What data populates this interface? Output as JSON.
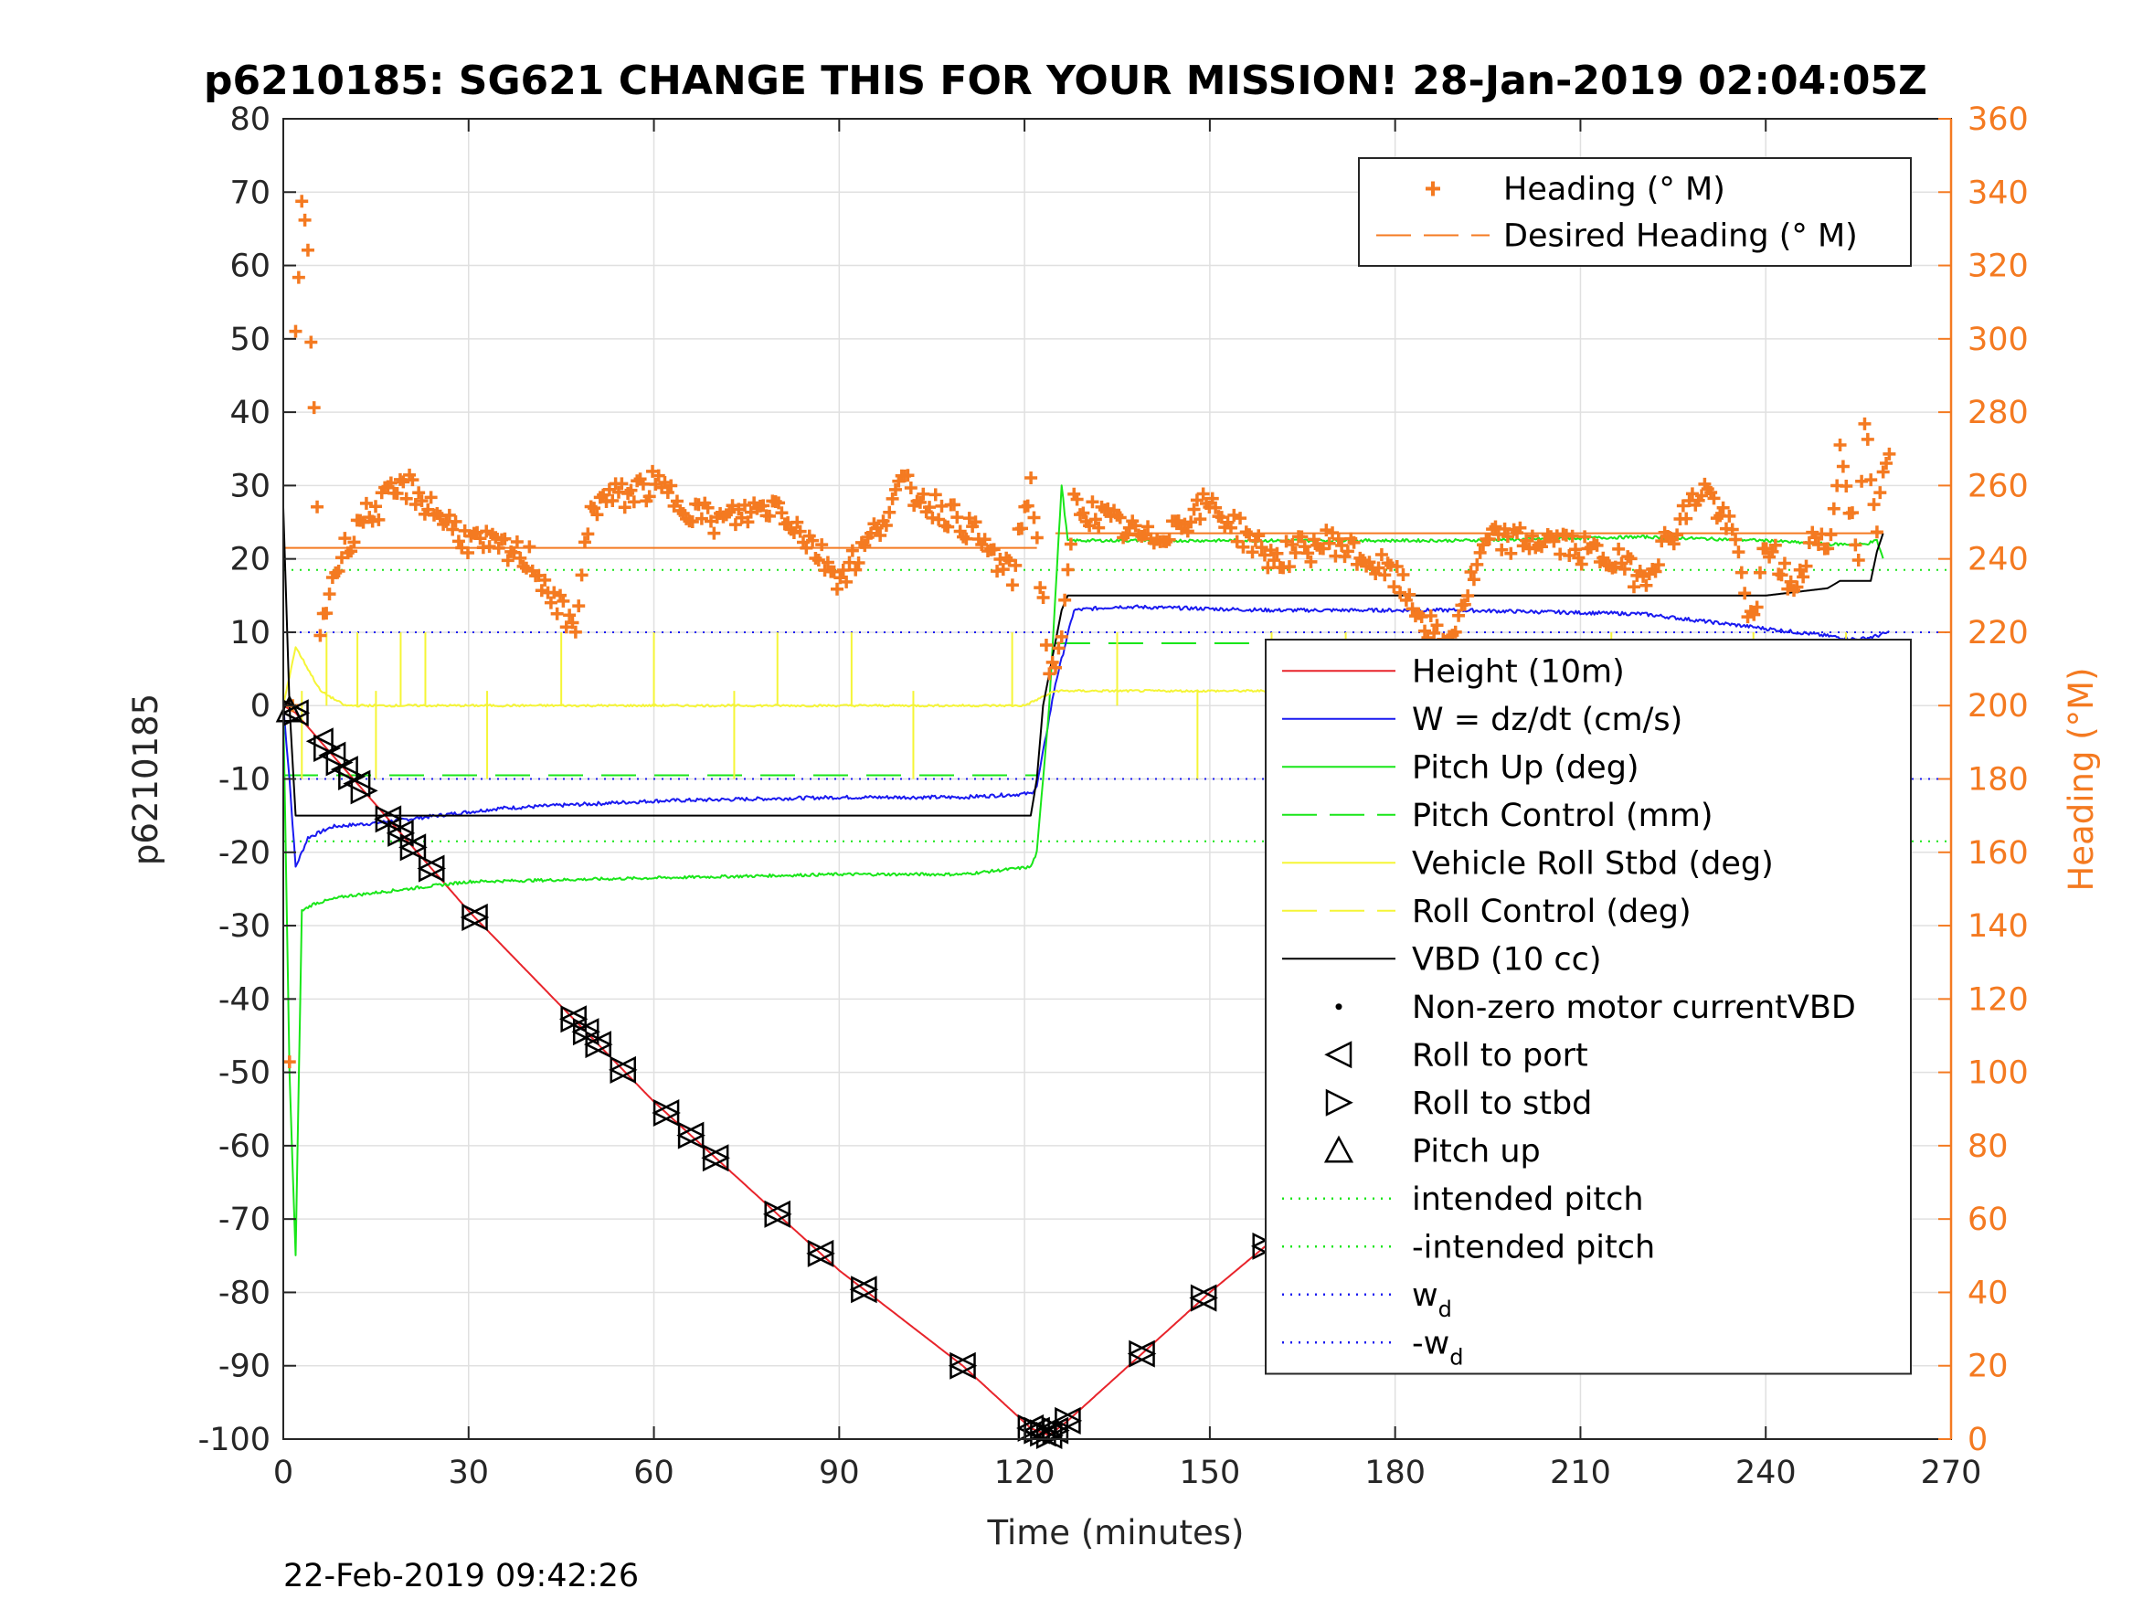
{
  "chart_data": {
    "type": "line",
    "title": "p6210185: SG621 CHANGE THIS FOR YOUR MISSION! 28-Jan-2019 02:04:05Z",
    "xlabel": "Time (minutes)",
    "ylabel": "p6210185",
    "y2label": "Heading (°M)",
    "timestamp": "22-Feb-2019 09:42:26",
    "xlim": [
      0,
      270
    ],
    "ylim": [
      -100,
      80
    ],
    "y2lim": [
      0,
      360
    ],
    "xticks": [
      "0",
      "30",
      "60",
      "90",
      "120",
      "150",
      "180",
      "210",
      "240",
      "270"
    ],
    "yticks": [
      "80",
      "70",
      "60",
      "50",
      "40",
      "30",
      "20",
      "10",
      "0",
      "-10",
      "-20",
      "-30",
      "-40",
      "-50",
      "-60",
      "-70",
      "-80",
      "-90",
      "-100"
    ],
    "y2ticks": [
      "360",
      "340",
      "320",
      "300",
      "280",
      "260",
      "240",
      "220",
      "200",
      "180",
      "160",
      "140",
      "120",
      "100",
      "80",
      "60",
      "40",
      "20",
      "0"
    ],
    "grid": true,
    "colors": {
      "heading": "#f47a21",
      "height": "#e8242b",
      "w": "#1a1af0",
      "pitch": "#19e619",
      "roll": "#f5f536",
      "vbd": "#000000"
    },
    "legend_heading": {
      "placement": "top-right",
      "entries": [
        {
          "label": "Heading (° M)",
          "marker": "plus",
          "color": "#f47a21"
        },
        {
          "label": "Desired Heading (° M)",
          "marker": "dash",
          "color": "#f47a21"
        }
      ]
    },
    "legend_main": {
      "placement": "right",
      "entries": [
        {
          "label": "Height (10m)",
          "marker": "line",
          "color": "#e8242b"
        },
        {
          "label": "W = dz/dt (cm/s)",
          "marker": "line",
          "color": "#1a1af0"
        },
        {
          "label": "Pitch Up (deg)",
          "marker": "line",
          "color": "#19e619"
        },
        {
          "label": "Pitch Control (mm)",
          "marker": "dash",
          "color": "#19e619"
        },
        {
          "label": "Vehicle Roll Stbd (deg)",
          "marker": "line",
          "color": "#f5f536"
        },
        {
          "label": "Roll Control (deg)",
          "marker": "dash",
          "color": "#f5f536"
        },
        {
          "label": "VBD (10 cc)",
          "marker": "line",
          "color": "#000000"
        },
        {
          "label": "Non-zero motor currentVBD",
          "marker": "dot",
          "color": "#000000"
        },
        {
          "label": "Roll to port",
          "marker": "tri-left",
          "color": "#000000"
        },
        {
          "label": "Roll to stbd",
          "marker": "tri-right",
          "color": "#000000"
        },
        {
          "label": "Pitch up",
          "marker": "tri-up",
          "color": "#000000"
        },
        {
          "label": "intended pitch",
          "marker": "dotted",
          "color": "#19e619"
        },
        {
          "label": "-intended pitch",
          "marker": "dotted",
          "color": "#19e619"
        },
        {
          "label": "w",
          "sub": "d",
          "marker": "dotted",
          "color": "#1a1af0"
        },
        {
          "label": "-w",
          "sub": "d",
          "marker": "dotted",
          "color": "#1a1af0"
        }
      ]
    },
    "reference_lines": {
      "intended_pitch": 18.5,
      "neg_intended_pitch": -18.5,
      "wd": 10,
      "neg_wd": -10,
      "desired_heading_dive": 243,
      "desired_heading_climb": 247,
      "pitch_control_dive": -9.5,
      "pitch_control_climb": 8.5
    },
    "series": [
      {
        "name": "Height (10m)",
        "x": [
          0,
          2,
          30,
          60,
          90,
          110,
          121,
          124,
          127,
          150,
          180,
          210,
          240,
          258,
          260
        ],
        "y": [
          0,
          -1,
          -28,
          -54,
          -77,
          -90,
          -98.5,
          -99.5,
          -97.5,
          -80,
          -59,
          -33,
          -12,
          -0.5,
          0
        ]
      },
      {
        "name": "W = dz/dt (cm/s)",
        "x": [
          0,
          1,
          2,
          4,
          8,
          15,
          25,
          35,
          60,
          90,
          110,
          121,
          122,
          125,
          128,
          135,
          160,
          190,
          220,
          235,
          245,
          255,
          258,
          260
        ],
        "y": [
          0,
          -10,
          -22,
          -18,
          -16.5,
          -16,
          -15,
          -14,
          -13,
          -12.5,
          -12.5,
          -12,
          -11,
          3,
          13,
          13.5,
          13,
          13,
          12.5,
          11,
          10,
          9,
          9.5,
          10
        ]
      },
      {
        "name": "Pitch Up (deg)",
        "x": [
          0,
          1,
          2,
          3,
          5,
          10,
          20,
          30,
          60,
          90,
          110,
          121,
          122,
          124,
          126,
          127,
          130,
          160,
          190,
          220,
          240,
          250,
          256,
          258,
          259
        ],
        "y": [
          0,
          -50,
          -75,
          -28,
          -27,
          -26,
          -25,
          -24,
          -23.5,
          -23,
          -23,
          -22,
          -20,
          0,
          30,
          22.5,
          22.5,
          22.5,
          22.5,
          23,
          22.5,
          22,
          22,
          22.5,
          20
        ]
      },
      {
        "name": "Vehicle Roll Stbd (deg)",
        "x": [
          0,
          2,
          6,
          10,
          20,
          30,
          60,
          90,
          120,
          125,
          130,
          160,
          190,
          220,
          250,
          258,
          260
        ],
        "y": [
          0,
          8,
          2,
          0,
          0,
          0,
          0,
          0,
          0,
          2,
          2,
          2,
          2,
          2,
          2,
          2,
          2
        ]
      },
      {
        "name": "VBD (10 cc)",
        "x": [
          0,
          1,
          2,
          30,
          60,
          90,
          121,
          122,
          123,
          126,
          127,
          150,
          180,
          210,
          240,
          250,
          252,
          257,
          258,
          259
        ],
        "y": [
          27,
          0,
          -15,
          -15,
          -15,
          -15,
          -15,
          -10,
          0,
          13,
          15,
          15,
          15,
          15,
          15,
          16,
          17,
          17,
          21,
          23.5
        ]
      },
      {
        "name": "Heading (° M)",
        "x": [
          1,
          2,
          3,
          4,
          5,
          6,
          8,
          12,
          20,
          30,
          40,
          47,
          50,
          60,
          70,
          80,
          90,
          95,
          100,
          110,
          118,
          121,
          124,
          126,
          128,
          140,
          150,
          160,
          170,
          180,
          188,
          195,
          205,
          215,
          220,
          230,
          235,
          238,
          240,
          245,
          248,
          250,
          252,
          255,
          256,
          258,
          260
        ],
        "y": [
          100,
          300,
          340,
          320,
          280,
          220,
          235,
          250,
          260,
          245,
          240,
          220,
          255,
          260,
          250,
          255,
          235,
          245,
          260,
          250,
          235,
          262,
          210,
          215,
          255,
          245,
          255,
          240,
          245,
          235,
          215,
          245,
          245,
          240,
          235,
          260,
          245,
          220,
          245,
          230,
          250,
          240,
          270,
          240,
          280,
          250,
          270
        ]
      }
    ],
    "markers": {
      "roll_to_port_x": [
        2,
        6,
        8,
        10,
        12,
        17,
        19,
        21,
        24,
        31,
        47,
        49,
        51,
        55,
        62,
        66,
        70,
        80,
        87,
        94,
        110,
        121,
        122,
        123,
        124,
        125,
        127,
        139,
        149,
        159,
        166,
        173,
        187,
        201,
        217,
        237,
        239,
        241,
        244,
        246,
        249,
        250,
        252,
        254,
        256,
        258,
        259
      ],
      "roll_to_stbd_x": [
        2,
        7,
        9,
        11,
        13,
        17,
        19,
        21,
        24,
        31,
        47,
        49,
        51,
        55,
        62,
        66,
        70,
        80,
        87,
        94,
        110,
        121,
        122,
        123,
        124,
        125,
        127,
        139,
        149,
        159,
        166,
        173,
        187,
        201,
        217,
        237,
        239,
        241,
        244,
        246,
        249,
        250,
        252,
        254,
        256,
        258,
        259
      ],
      "pitch_up_x": [
        1,
        173
      ]
    }
  }
}
